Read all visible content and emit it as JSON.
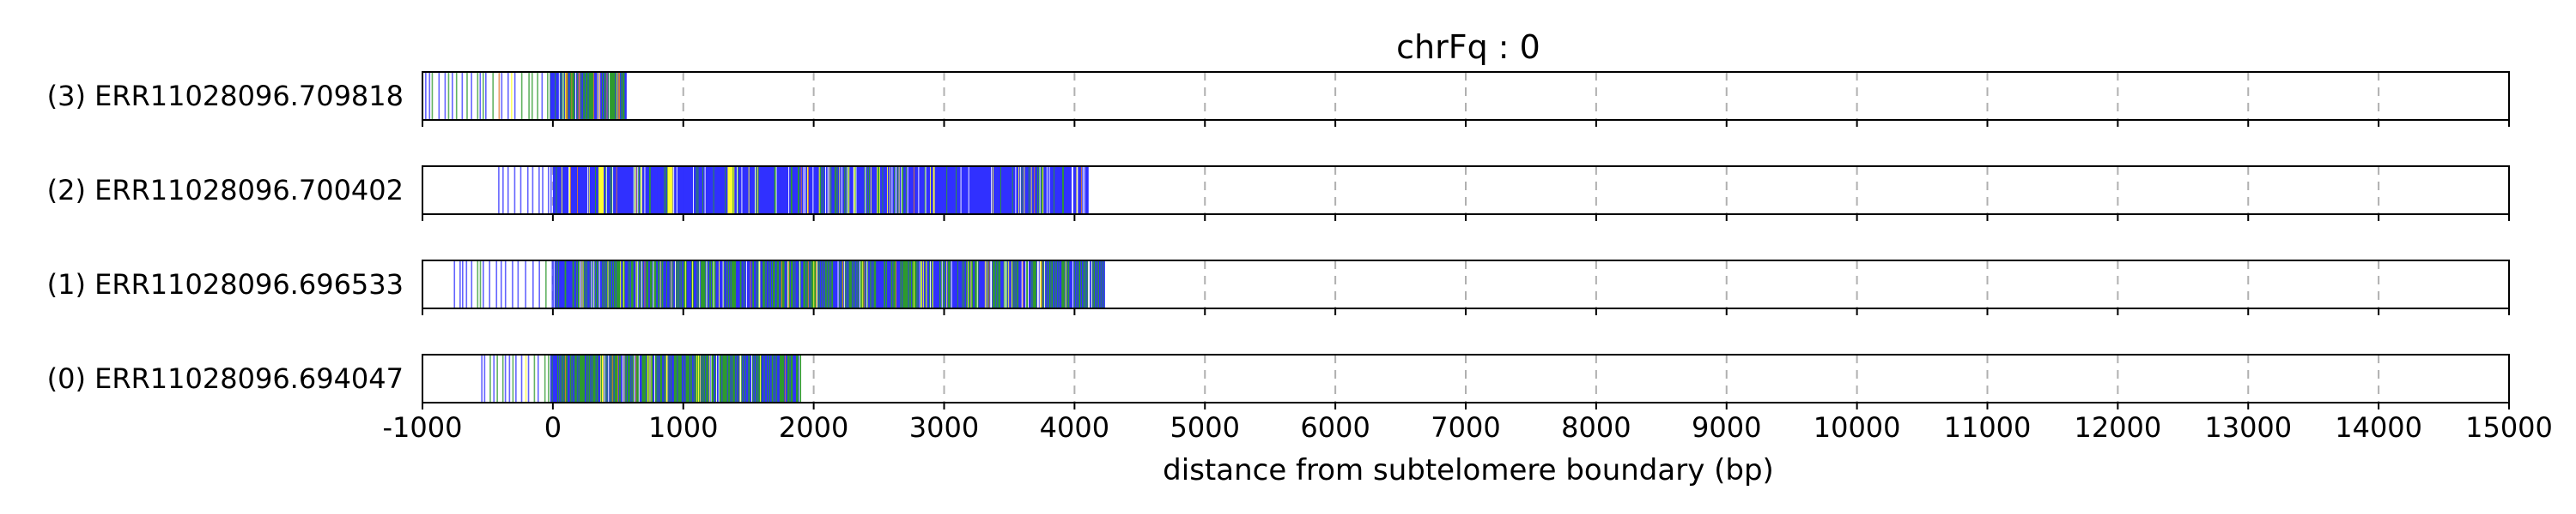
{
  "chart_data": {
    "type": "track",
    "title": "chrFq : 0",
    "xlabel": "distance from subtelomere boundary (bp)",
    "xlim": [
      -1000,
      15000
    ],
    "xticks": [
      -1000,
      0,
      1000,
      2000,
      3000,
      4000,
      5000,
      6000,
      7000,
      8000,
      9000,
      10000,
      11000,
      12000,
      13000,
      14000,
      15000
    ],
    "grid": true,
    "colors": {
      "blue": "#3030ff",
      "green": "#2e9a2e",
      "yellow": "#ffff30",
      "orange": "#e07b2e",
      "light": "#c8c8ff"
    },
    "reads": [
      {
        "label": "(3) ERR11028096.709818",
        "start": -1000,
        "end": 670,
        "dense_start": -20,
        "dense_end": 560,
        "sparse_start": -980,
        "mix": {
          "blue": 0.45,
          "green": 0.4,
          "yellow": 0.05,
          "orange": 0.1
        },
        "seed": 11
      },
      {
        "label": "(2) ERR11028096.700402",
        "start": -420,
        "end": 4100,
        "dense_start": 0,
        "dense_end": 4100,
        "sparse_start": -420,
        "mix": {
          "blue": 0.82,
          "green": 0.1,
          "yellow": 0.06,
          "orange": 0.02
        },
        "yellow_bands": [
          350,
          880,
          1340
        ],
        "seed": 23
      },
      {
        "label": "(1) ERR11028096.696533",
        "start": -1000,
        "end": 4230,
        "dense_start": 0,
        "dense_end": 4230,
        "sparse_start": -760,
        "mix": {
          "blue": 0.52,
          "green": 0.42,
          "yellow": 0.04,
          "orange": 0.02
        },
        "seed": 37
      },
      {
        "label": "(0) ERR11028096.694047",
        "start": -550,
        "end": 1900,
        "dense_start": -20,
        "dense_end": 1900,
        "sparse_start": -550,
        "mix": {
          "blue": 0.4,
          "green": 0.52,
          "yellow": 0.06,
          "orange": 0.02
        },
        "seed": 53
      }
    ]
  }
}
